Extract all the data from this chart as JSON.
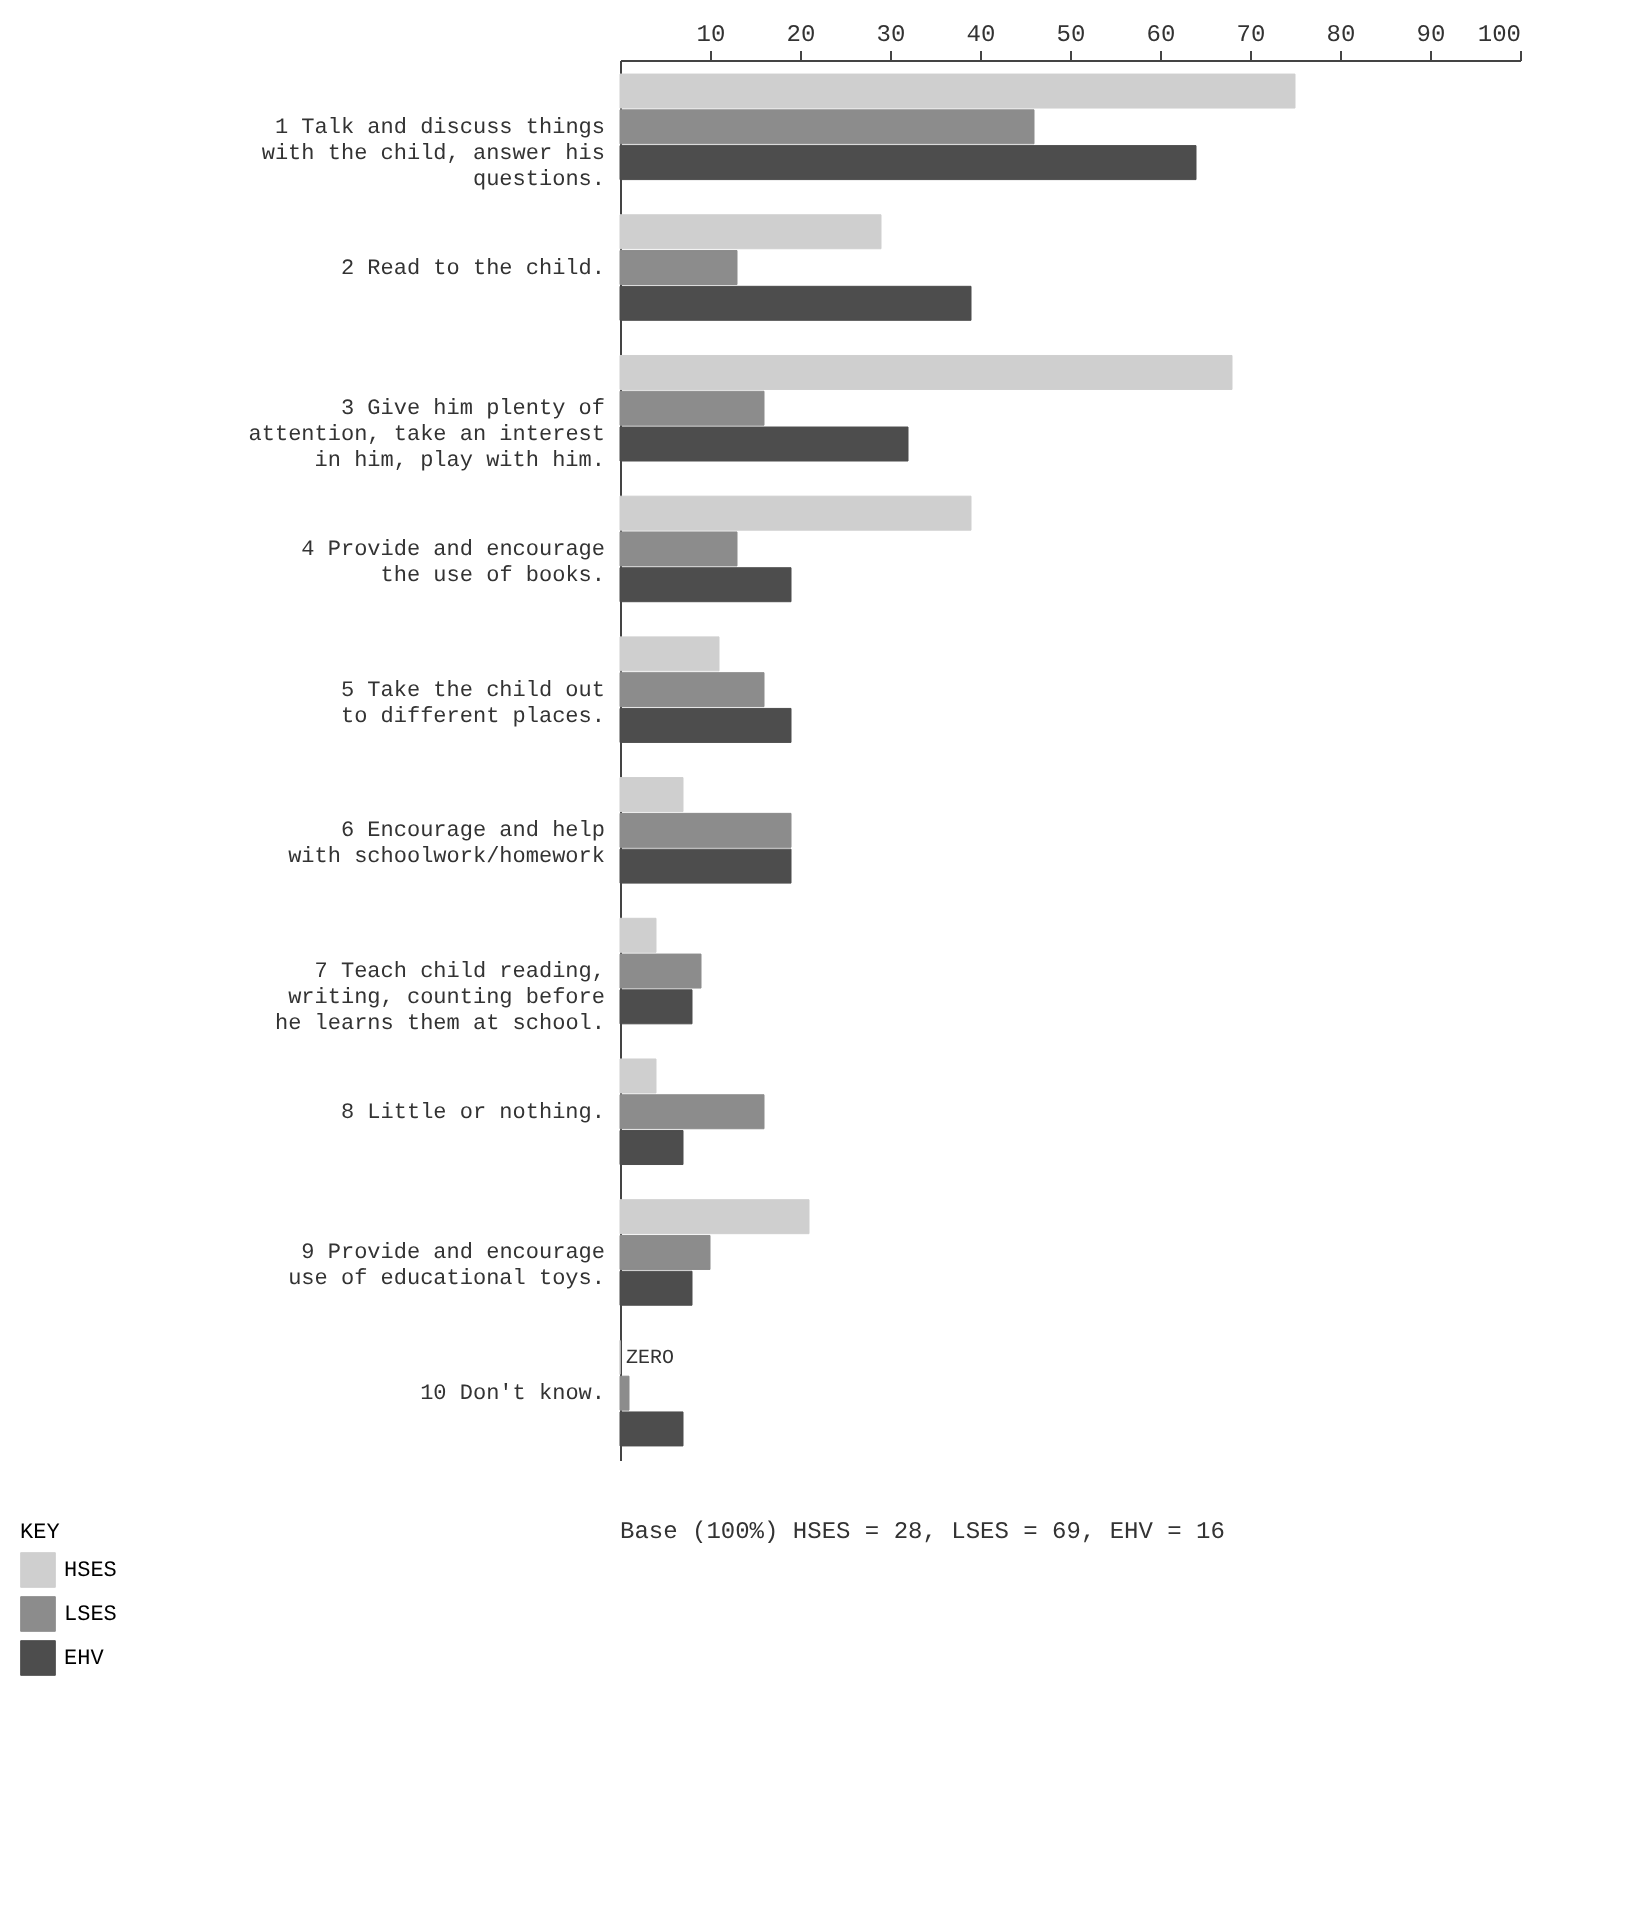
{
  "chart_data": {
    "type": "bar",
    "orientation": "horizontal",
    "legend": "bottom left",
    "legend_title": "KEY",
    "categories": [
      "1  Talk and discuss things\nwith the child, answer his\nquestions.",
      "2  Read to the child.",
      "3  Give him plenty of\nattention, take an interest\nin him, play with him.",
      "4  Provide and encourage\nthe use of books.",
      "5  Take the child out\nto different places.",
      "6  Encourage and help\nwith schoolwork/homework",
      "7  Teach child reading,\nwriting, counting before\nhe learns them at school.",
      "8  Little or nothing.",
      "9  Provide and encourage\nuse of educational toys.",
      "10  Don't know."
    ],
    "series": [
      {
        "name": "HSES",
        "color": "#cfcfcf",
        "values": [
          75,
          29,
          68,
          39,
          11,
          7,
          4,
          4,
          21,
          0
        ]
      },
      {
        "name": "LSES",
        "color": "#8c8c8c",
        "values": [
          46,
          13,
          16,
          13,
          16,
          19,
          9,
          16,
          10,
          1
        ]
      },
      {
        "name": "EHV",
        "color": "#4d4d4d",
        "values": [
          64,
          39,
          32,
          19,
          19,
          19,
          8,
          7,
          8,
          7
        ]
      }
    ],
    "xlim": [
      0,
      100
    ],
    "xticks": [
      10,
      20,
      30,
      40,
      50,
      60,
      70,
      80,
      90,
      100
    ],
    "grid": false,
    "annotations": [
      {
        "text": "ZERO",
        "x": 0,
        "y": "10  Don't know."
      },
      "Base (100%)   HSES = 28,  LSES = 69,  EHV = 16"
    ]
  }
}
